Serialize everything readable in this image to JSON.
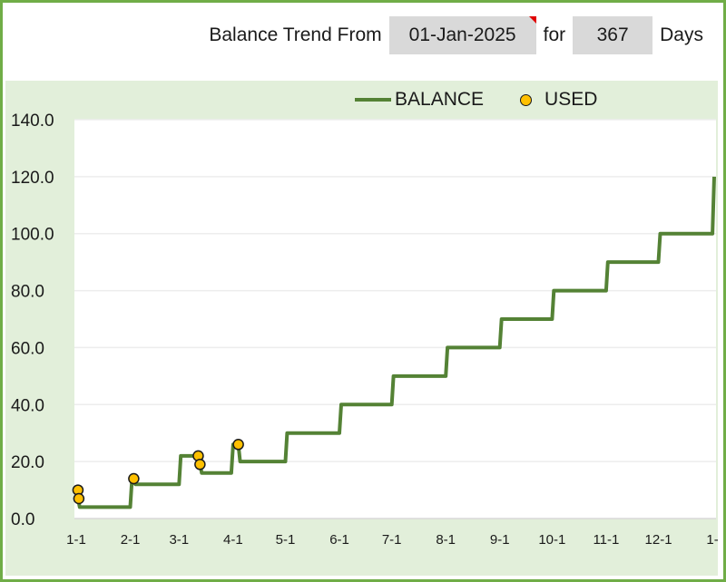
{
  "header": {
    "prefix": "Balance Trend From",
    "start_date": "01-Jan-2025",
    "for_label": "for",
    "days_value": "367",
    "days_label": "Days"
  },
  "legend": {
    "balance_label": "BALANCE",
    "used_label": "USED"
  },
  "colors": {
    "frame": "#70AD47",
    "chart_bg": "#E2EFDA",
    "plot_bg": "#FFFFFF",
    "balance_line": "#548235",
    "used_marker": "#FFC000",
    "gridline": "#EDEDED",
    "input_cell": "#D9D9D9",
    "comment_marker": "#E00000"
  },
  "chart_data": {
    "type": "line",
    "title": "Balance Trend From 01-Jan-2025 for 367 Days",
    "xlabel": "",
    "ylabel": "",
    "ylim": [
      0,
      140
    ],
    "yticks": [
      "0.0",
      "20.0",
      "40.0",
      "60.0",
      "80.0",
      "100.0",
      "120.0",
      "140.0"
    ],
    "ytick_values": [
      0,
      20,
      40,
      60,
      80,
      100,
      120,
      140
    ],
    "xticks": [
      "1-1",
      "2-1",
      "3-1",
      "4-1",
      "5-1",
      "6-1",
      "7-1",
      "8-1",
      "9-1",
      "10-1",
      "11-1",
      "12-1",
      "1-"
    ],
    "xtick_days": [
      0,
      31,
      59,
      90,
      120,
      151,
      181,
      212,
      243,
      273,
      304,
      334,
      365
    ],
    "xlim_days": [
      0,
      366
    ],
    "grid": "horizontal",
    "legend_position": "top",
    "series": [
      {
        "name": "BALANCE",
        "kind": "step-line",
        "points": [
          [
            0,
            10
          ],
          [
            1,
            7
          ],
          [
            2,
            4
          ],
          [
            31,
            4
          ],
          [
            32,
            14
          ],
          [
            34,
            12
          ],
          [
            59,
            12
          ],
          [
            60,
            22
          ],
          [
            70,
            22
          ],
          [
            71,
            19
          ],
          [
            72,
            16
          ],
          [
            89,
            16
          ],
          [
            90,
            26
          ],
          [
            93,
            26
          ],
          [
            94,
            20
          ],
          [
            120,
            20
          ],
          [
            121,
            30
          ],
          [
            151,
            30
          ],
          [
            152,
            40
          ],
          [
            181,
            40
          ],
          [
            182,
            50
          ],
          [
            212,
            50
          ],
          [
            213,
            60
          ],
          [
            243,
            60
          ],
          [
            244,
            70
          ],
          [
            273,
            70
          ],
          [
            274,
            80
          ],
          [
            304,
            80
          ],
          [
            305,
            90
          ],
          [
            334,
            90
          ],
          [
            335,
            100
          ],
          [
            365,
            100
          ],
          [
            366,
            120
          ]
        ]
      },
      {
        "name": "USED",
        "kind": "scatter",
        "points": [
          [
            1,
            10
          ],
          [
            1.5,
            7
          ],
          [
            33,
            14
          ],
          [
            70,
            22
          ],
          [
            71,
            19
          ],
          [
            93,
            26
          ]
        ]
      }
    ]
  }
}
